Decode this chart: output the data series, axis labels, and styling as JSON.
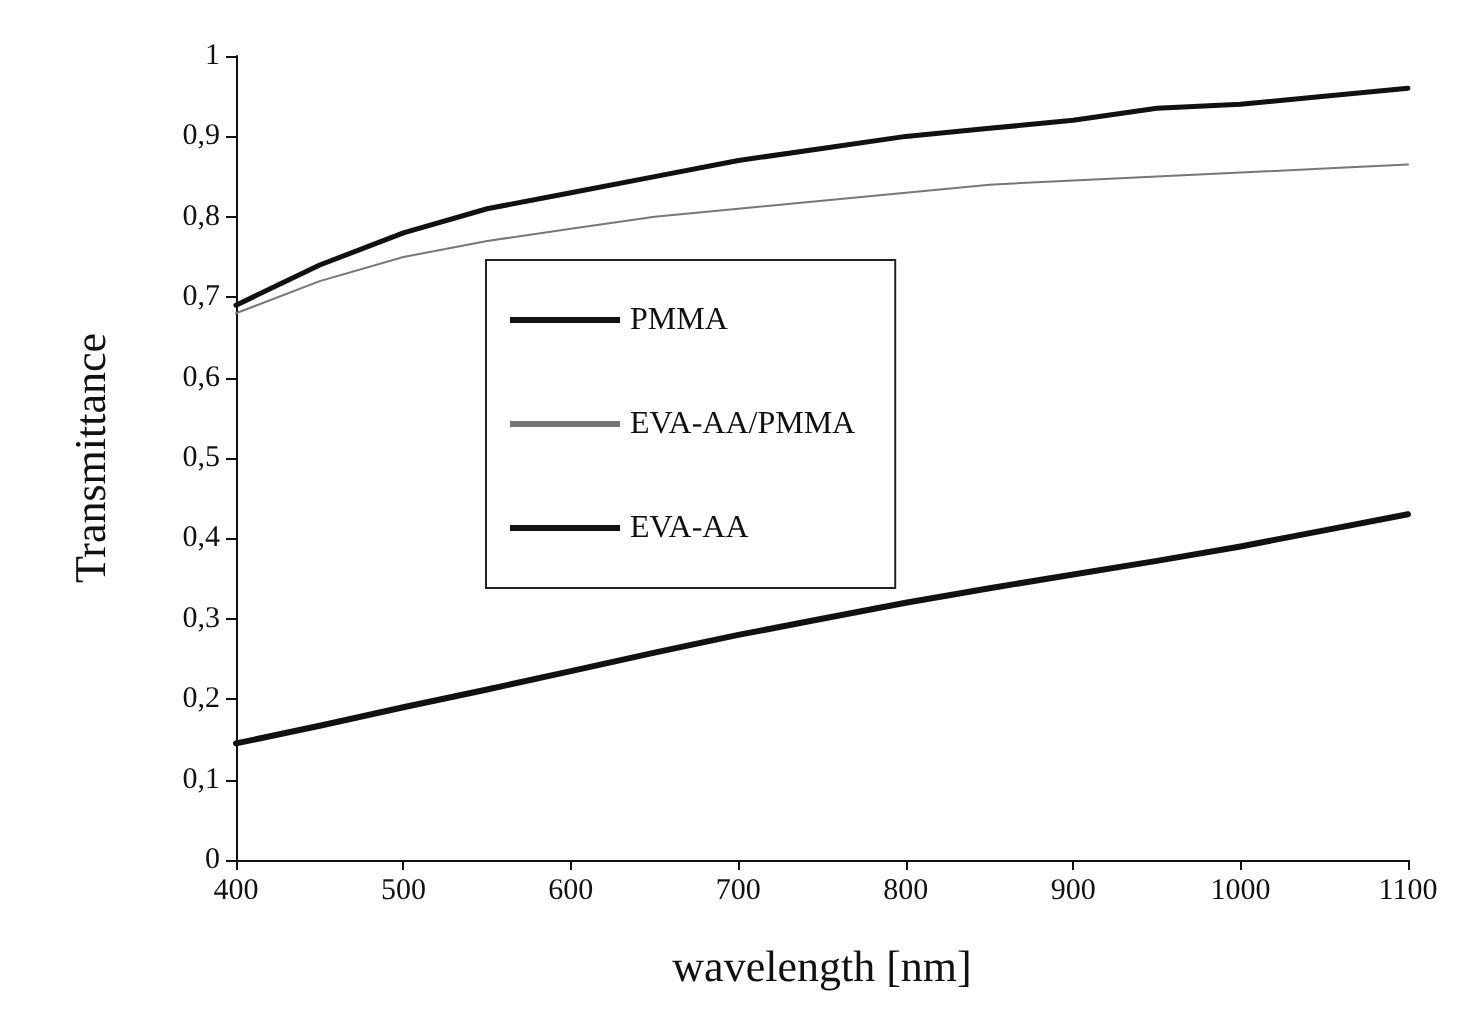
{
  "chart_data": {
    "type": "line",
    "xlabel": "wavelength [nm]",
    "ylabel": "Transmittance",
    "x": [
      400,
      450,
      500,
      550,
      600,
      650,
      700,
      750,
      800,
      850,
      900,
      950,
      1000,
      1050,
      1100
    ],
    "series": [
      {
        "name": "PMMA",
        "color": "#111111",
        "values": [
          0.69,
          0.74,
          0.78,
          0.81,
          0.83,
          0.85,
          0.87,
          0.885,
          0.9,
          0.91,
          0.92,
          0.935,
          0.94,
          0.95,
          0.96
        ]
      },
      {
        "name": "EVA-AA/PMMA",
        "color": "#777777",
        "values": [
          0.68,
          0.72,
          0.75,
          0.77,
          0.785,
          0.8,
          0.81,
          0.82,
          0.83,
          0.84,
          0.845,
          0.85,
          0.855,
          0.86,
          0.865
        ]
      },
      {
        "name": "EVA-AA",
        "color": "#111111",
        "values": [
          0.145,
          0.167,
          0.19,
          0.212,
          0.235,
          0.258,
          0.28,
          0.3,
          0.32,
          0.338,
          0.355,
          0.372,
          0.39,
          0.41,
          0.43
        ]
      }
    ],
    "xlim": [
      400,
      1100
    ],
    "xticks": [
      400,
      500,
      600,
      700,
      800,
      900,
      1000,
      1100
    ],
    "ylim": [
      0,
      1
    ],
    "yticks": [
      0,
      {
        "value": 0.1,
        "label": "0,1"
      },
      {
        "value": 0.2,
        "label": "0,2"
      },
      {
        "value": 0.3,
        "label": "0,3"
      },
      {
        "value": 0.4,
        "label": "0,4"
      },
      {
        "value": 0.5,
        "label": "0,5"
      },
      {
        "value": 0.6,
        "label": "0,6"
      },
      {
        "value": 0.7,
        "label": "0,7"
      },
      {
        "value": 0.8,
        "label": "0,8"
      },
      {
        "value": 0.9,
        "label": "0,9"
      },
      1
    ],
    "grid": false,
    "legend": "left",
    "marker": "none",
    "line_style": "solid"
  }
}
